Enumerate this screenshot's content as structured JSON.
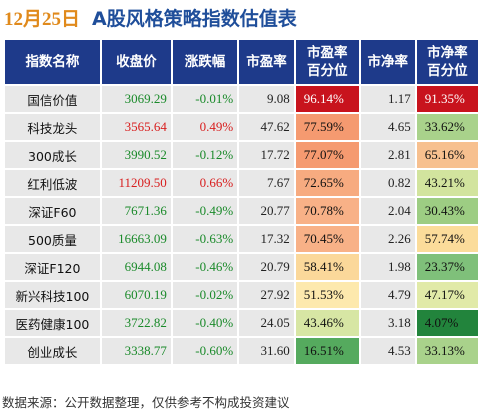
{
  "title": {
    "date": "12月25日",
    "main": "A股风格策略指数估值表"
  },
  "table": {
    "headers": [
      "指数名称",
      "收盘价",
      "涨跌幅",
      "市盈率",
      "市盈率\n百分位",
      "市净率",
      "市净率\n百分位"
    ],
    "rows": [
      {
        "name": "国信价值",
        "close": "3069.29",
        "change": "-0.01%",
        "pe": "9.08",
        "pe_pct": "96.14%",
        "pb": "1.17",
        "pb_pct": "91.35%",
        "pe_color": "#c8131d",
        "pb_color": "#c8131d",
        "pe_text": "#ffffff",
        "pb_text": "#ffffff"
      },
      {
        "name": "科技龙头",
        "close": "3565.64",
        "change": "0.49%",
        "pe": "47.62",
        "pe_pct": "77.59%",
        "pb": "4.65",
        "pb_pct": "33.62%",
        "pe_color": "#f59a70",
        "pb_color": "#a9d28b",
        "pe_text": "#111111",
        "pb_text": "#111111"
      },
      {
        "name": "300成长",
        "close": "3990.52",
        "change": "-0.12%",
        "pe": "17.72",
        "pe_pct": "77.07%",
        "pb": "2.81",
        "pb_pct": "65.16%",
        "pe_color": "#f59a70",
        "pb_color": "#f7c08f",
        "pe_text": "#111111",
        "pb_text": "#111111"
      },
      {
        "name": "红利低波",
        "close": "11209.50",
        "change": "0.66%",
        "pe": "7.67",
        "pe_pct": "72.65%",
        "pb": "0.82",
        "pb_pct": "43.21%",
        "pe_color": "#f7ab80",
        "pb_color": "#d2e49e",
        "pe_text": "#111111",
        "pb_text": "#111111"
      },
      {
        "name": "深证F60",
        "close": "7671.36",
        "change": "-0.49%",
        "pe": "20.77",
        "pe_pct": "70.78%",
        "pb": "2.04",
        "pb_pct": "30.43%",
        "pe_color": "#f8b187",
        "pb_color": "#9dcd83",
        "pe_text": "#111111",
        "pb_text": "#111111"
      },
      {
        "name": "500质量",
        "close": "16663.09",
        "change": "-0.63%",
        "pe": "17.32",
        "pe_pct": "70.45%",
        "pb": "2.26",
        "pb_pct": "57.74%",
        "pe_color": "#f8b187",
        "pb_color": "#fbdc9a",
        "pe_text": "#111111",
        "pb_text": "#111111"
      },
      {
        "name": "深证F120",
        "close": "6944.08",
        "change": "-0.46%",
        "pe": "20.79",
        "pe_pct": "58.41%",
        "pb": "1.98",
        "pb_pct": "23.37%",
        "pe_color": "#fbd89a",
        "pb_color": "#7fc07a",
        "pe_text": "#111111",
        "pb_text": "#111111"
      },
      {
        "name": "新兴科技100",
        "close": "6070.19",
        "change": "-0.02%",
        "pe": "27.92",
        "pe_pct": "51.53%",
        "pb": "4.79",
        "pb_pct": "47.17%",
        "pe_color": "#fde9ad",
        "pb_color": "#e1eaa8",
        "pe_text": "#111111",
        "pb_text": "#111111"
      },
      {
        "name": "医药健康100",
        "close": "3722.82",
        "change": "-0.40%",
        "pe": "24.05",
        "pe_pct": "43.46%",
        "pb": "3.18",
        "pb_pct": "4.07%",
        "pe_color": "#d7e6a4",
        "pb_color": "#22843c",
        "pe_text": "#111111",
        "pb_text": "#111111"
      },
      {
        "name": "创业成长",
        "close": "3338.77",
        "change": "-0.60%",
        "pe": "31.60",
        "pe_pct": "16.51%",
        "pb": "4.53",
        "pb_pct": "33.13%",
        "pe_color": "#55aa5e",
        "pb_color": "#a9d28b",
        "pe_text": "#111111",
        "pb_text": "#111111"
      }
    ]
  },
  "colors": {
    "header_bg": "#1e3a8a",
    "up": "#d81e1e",
    "down": "#1a8a2a",
    "title_date": "#e08a1c",
    "title_main": "#1f4e9a"
  },
  "footer": "数据来源：公开数据整理，仅供参考不构成投资建议"
}
